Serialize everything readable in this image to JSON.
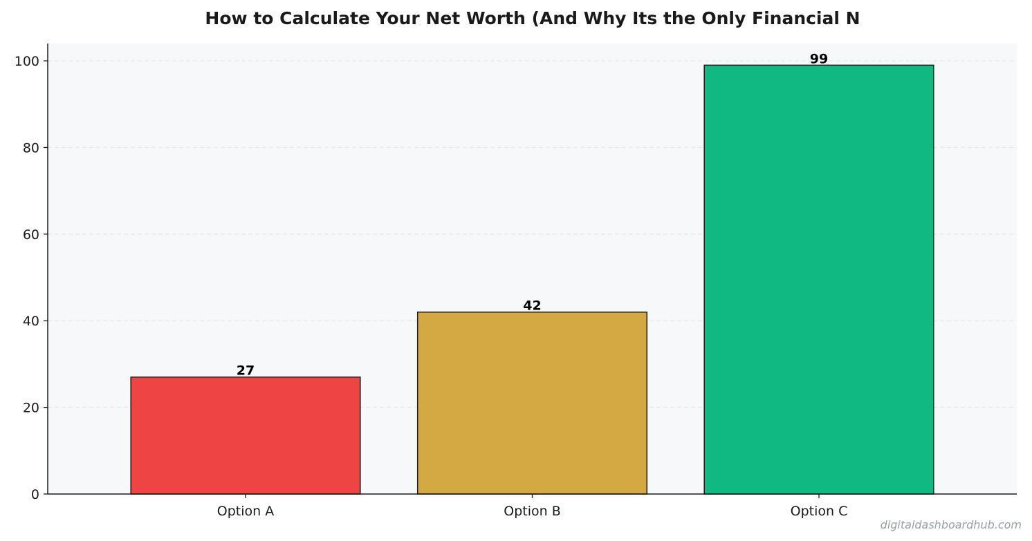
{
  "chart_data": {
    "type": "bar",
    "title": "How to Calculate Your Net Worth (And Why Its the Only Financial N",
    "categories": [
      "Option A",
      "Option B",
      "Option C"
    ],
    "values": [
      27,
      42,
      99
    ],
    "data_labels": [
      "27",
      "42",
      "99"
    ],
    "colors": [
      "#ef4444",
      "#d4a843",
      "#10b981"
    ],
    "edge_color": "#1a1a1a",
    "plot_background": "#f7f8fa",
    "grid_color": "#e3e6ea",
    "xlabel": "",
    "ylabel": "",
    "ylim": [
      0,
      104
    ],
    "yticks": [
      0,
      20,
      40,
      60,
      80,
      100
    ],
    "grid": true,
    "grid_axis": "y",
    "legend": false
  },
  "watermark": "digitaldashboardhub.com"
}
